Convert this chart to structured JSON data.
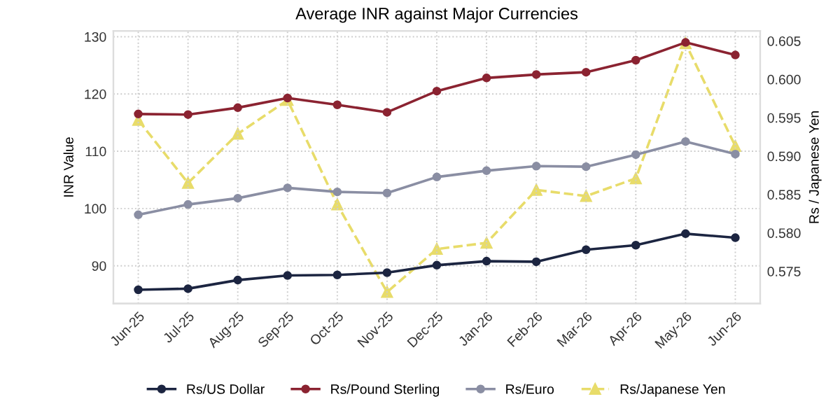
{
  "chart_data": {
    "type": "line",
    "title": "Average INR against Major Currencies",
    "ylabel": "INR Value",
    "y2label": "Rs / Japanese Yen",
    "categories": [
      "Jun-25",
      "Jul-25",
      "Aug-25",
      "Sep-25",
      "Oct-25",
      "Nov-25",
      "Dec-25",
      "Jan-26",
      "Feb-26",
      "Mar-26",
      "Apr-26",
      "May-26",
      "Jun-26"
    ],
    "series": [
      {
        "name": "Rs/US Dollar",
        "color": "#1c2541",
        "marker": "circle",
        "line_style": "solid",
        "values": [
          85.8,
          86.0,
          87.5,
          88.3,
          88.4,
          88.8,
          90.1,
          90.8,
          90.7,
          92.8,
          93.6,
          95.6,
          94.9
        ]
      },
      {
        "name": "Rs/Pound Sterling",
        "color": "#8b2331",
        "marker": "circle",
        "line_style": "solid",
        "values": [
          116.5,
          116.4,
          117.6,
          119.3,
          118.1,
          116.8,
          120.5,
          122.8,
          123.4,
          123.8,
          125.9,
          129.0,
          126.8
        ]
      },
      {
        "name": "Rs/Euro",
        "color": "#8a8ea3",
        "marker": "circle",
        "line_style": "solid",
        "values": [
          98.9,
          100.7,
          101.8,
          103.6,
          102.9,
          102.7,
          105.5,
          106.6,
          107.4,
          107.3,
          109.4,
          111.7,
          109.5
        ]
      },
      {
        "name": "Rs/Japanese Yen",
        "color": "#e8dc6a",
        "marker": "triangle",
        "line_style": "dashed",
        "axis": "y2",
        "values": [
          0.5947,
          0.5865,
          0.5929,
          0.5973,
          0.5837,
          0.5723,
          0.5779,
          0.5787,
          0.5856,
          0.5848,
          0.5871,
          0.6047,
          0.5913
        ]
      }
    ],
    "ylim": [
      83.4,
      131
    ],
    "yticks": [
      90,
      100,
      110,
      120,
      130
    ],
    "y2lim": [
      0.5708,
      0.6063
    ],
    "y2ticks": [
      0.575,
      {
        "value": 0.58,
        "label": "0.580"
      },
      0.585,
      {
        "value": 0.59,
        "label": "0.590"
      },
      0.595,
      {
        "value": 0.6,
        "label": "0.600"
      },
      0.605
    ],
    "grid": true,
    "legend": "bottom"
  }
}
